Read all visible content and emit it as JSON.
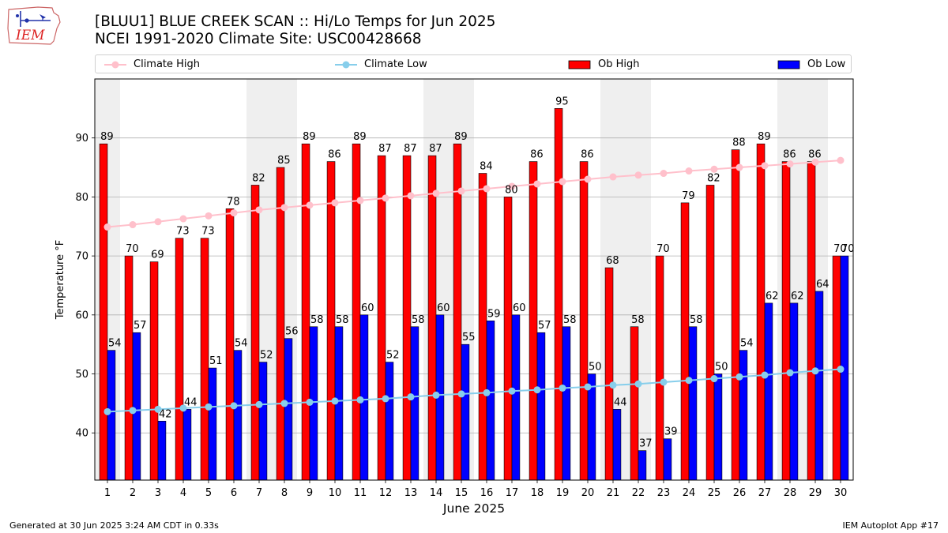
{
  "header": {
    "title_line1": "[BLUU1] BLUE CREEK SCAN :: Hi/Lo Temps for Jun 2025",
    "title_line2": "NCEI 1991-2020 Climate Site: USC00428668",
    "logo_text": "IEM"
  },
  "legend": {
    "climate_high": "Climate High",
    "climate_low": "Climate Low",
    "ob_high": "Ob High",
    "ob_low": "Ob Low"
  },
  "footer": {
    "left": "Generated at 30 Jun 2025 3:24 AM CDT in 0.33s",
    "right": "IEM Autoplot App #17"
  },
  "colors": {
    "ob_high": "#ff0000",
    "ob_low": "#0000ff",
    "climate_high": "#ffc0cb",
    "climate_low": "#87ceeb",
    "weekend_shading": "#efefef"
  },
  "chart_data": {
    "type": "bar",
    "xlabel": "June 2025",
    "ylabel": "Temperature °F",
    "ylim": [
      32,
      100
    ],
    "yticks": [
      40,
      50,
      60,
      70,
      80,
      90
    ],
    "grid": true,
    "legend_placement": "top",
    "categories": [
      "1",
      "2",
      "3",
      "4",
      "5",
      "6",
      "7",
      "8",
      "9",
      "10",
      "11",
      "12",
      "13",
      "14",
      "15",
      "16",
      "17",
      "18",
      "19",
      "20",
      "21",
      "22",
      "23",
      "24",
      "25",
      "26",
      "27",
      "28",
      "29",
      "30"
    ],
    "weekend_days": [
      1,
      7,
      8,
      14,
      15,
      21,
      22,
      28,
      29
    ],
    "series": [
      {
        "name": "Ob High",
        "kind": "bar",
        "values": [
          89,
          70,
          69,
          73,
          73,
          78,
          82,
          85,
          89,
          86,
          89,
          87,
          87,
          87,
          89,
          84,
          80,
          86,
          95,
          86,
          68,
          58,
          70,
          79,
          82,
          88,
          89,
          86,
          86,
          70
        ]
      },
      {
        "name": "Ob Low",
        "kind": "bar",
        "values": [
          54,
          57,
          42,
          44,
          51,
          54,
          52,
          56,
          58,
          58,
          60,
          52,
          58,
          60,
          55,
          59,
          60,
          57,
          58,
          50,
          44,
          37,
          39,
          58,
          50,
          54,
          62,
          62,
          64,
          70
        ]
      },
      {
        "name": "Climate High",
        "kind": "line",
        "values": [
          74.9,
          75.3,
          75.8,
          76.3,
          76.8,
          77.3,
          77.8,
          78.2,
          78.6,
          79.0,
          79.4,
          79.8,
          80.2,
          80.6,
          81.0,
          81.4,
          81.8,
          82.2,
          82.6,
          83.0,
          83.4,
          83.7,
          84.0,
          84.4,
          84.7,
          85.0,
          85.3,
          85.6,
          85.9,
          86.2
        ]
      },
      {
        "name": "Climate Low",
        "kind": "line",
        "values": [
          43.6,
          43.8,
          44.0,
          44.2,
          44.4,
          44.6,
          44.8,
          45.0,
          45.2,
          45.4,
          45.6,
          45.8,
          46.1,
          46.4,
          46.6,
          46.8,
          47.1,
          47.3,
          47.6,
          47.8,
          48.1,
          48.3,
          48.6,
          48.9,
          49.2,
          49.5,
          49.8,
          50.2,
          50.5,
          50.8
        ]
      }
    ]
  }
}
